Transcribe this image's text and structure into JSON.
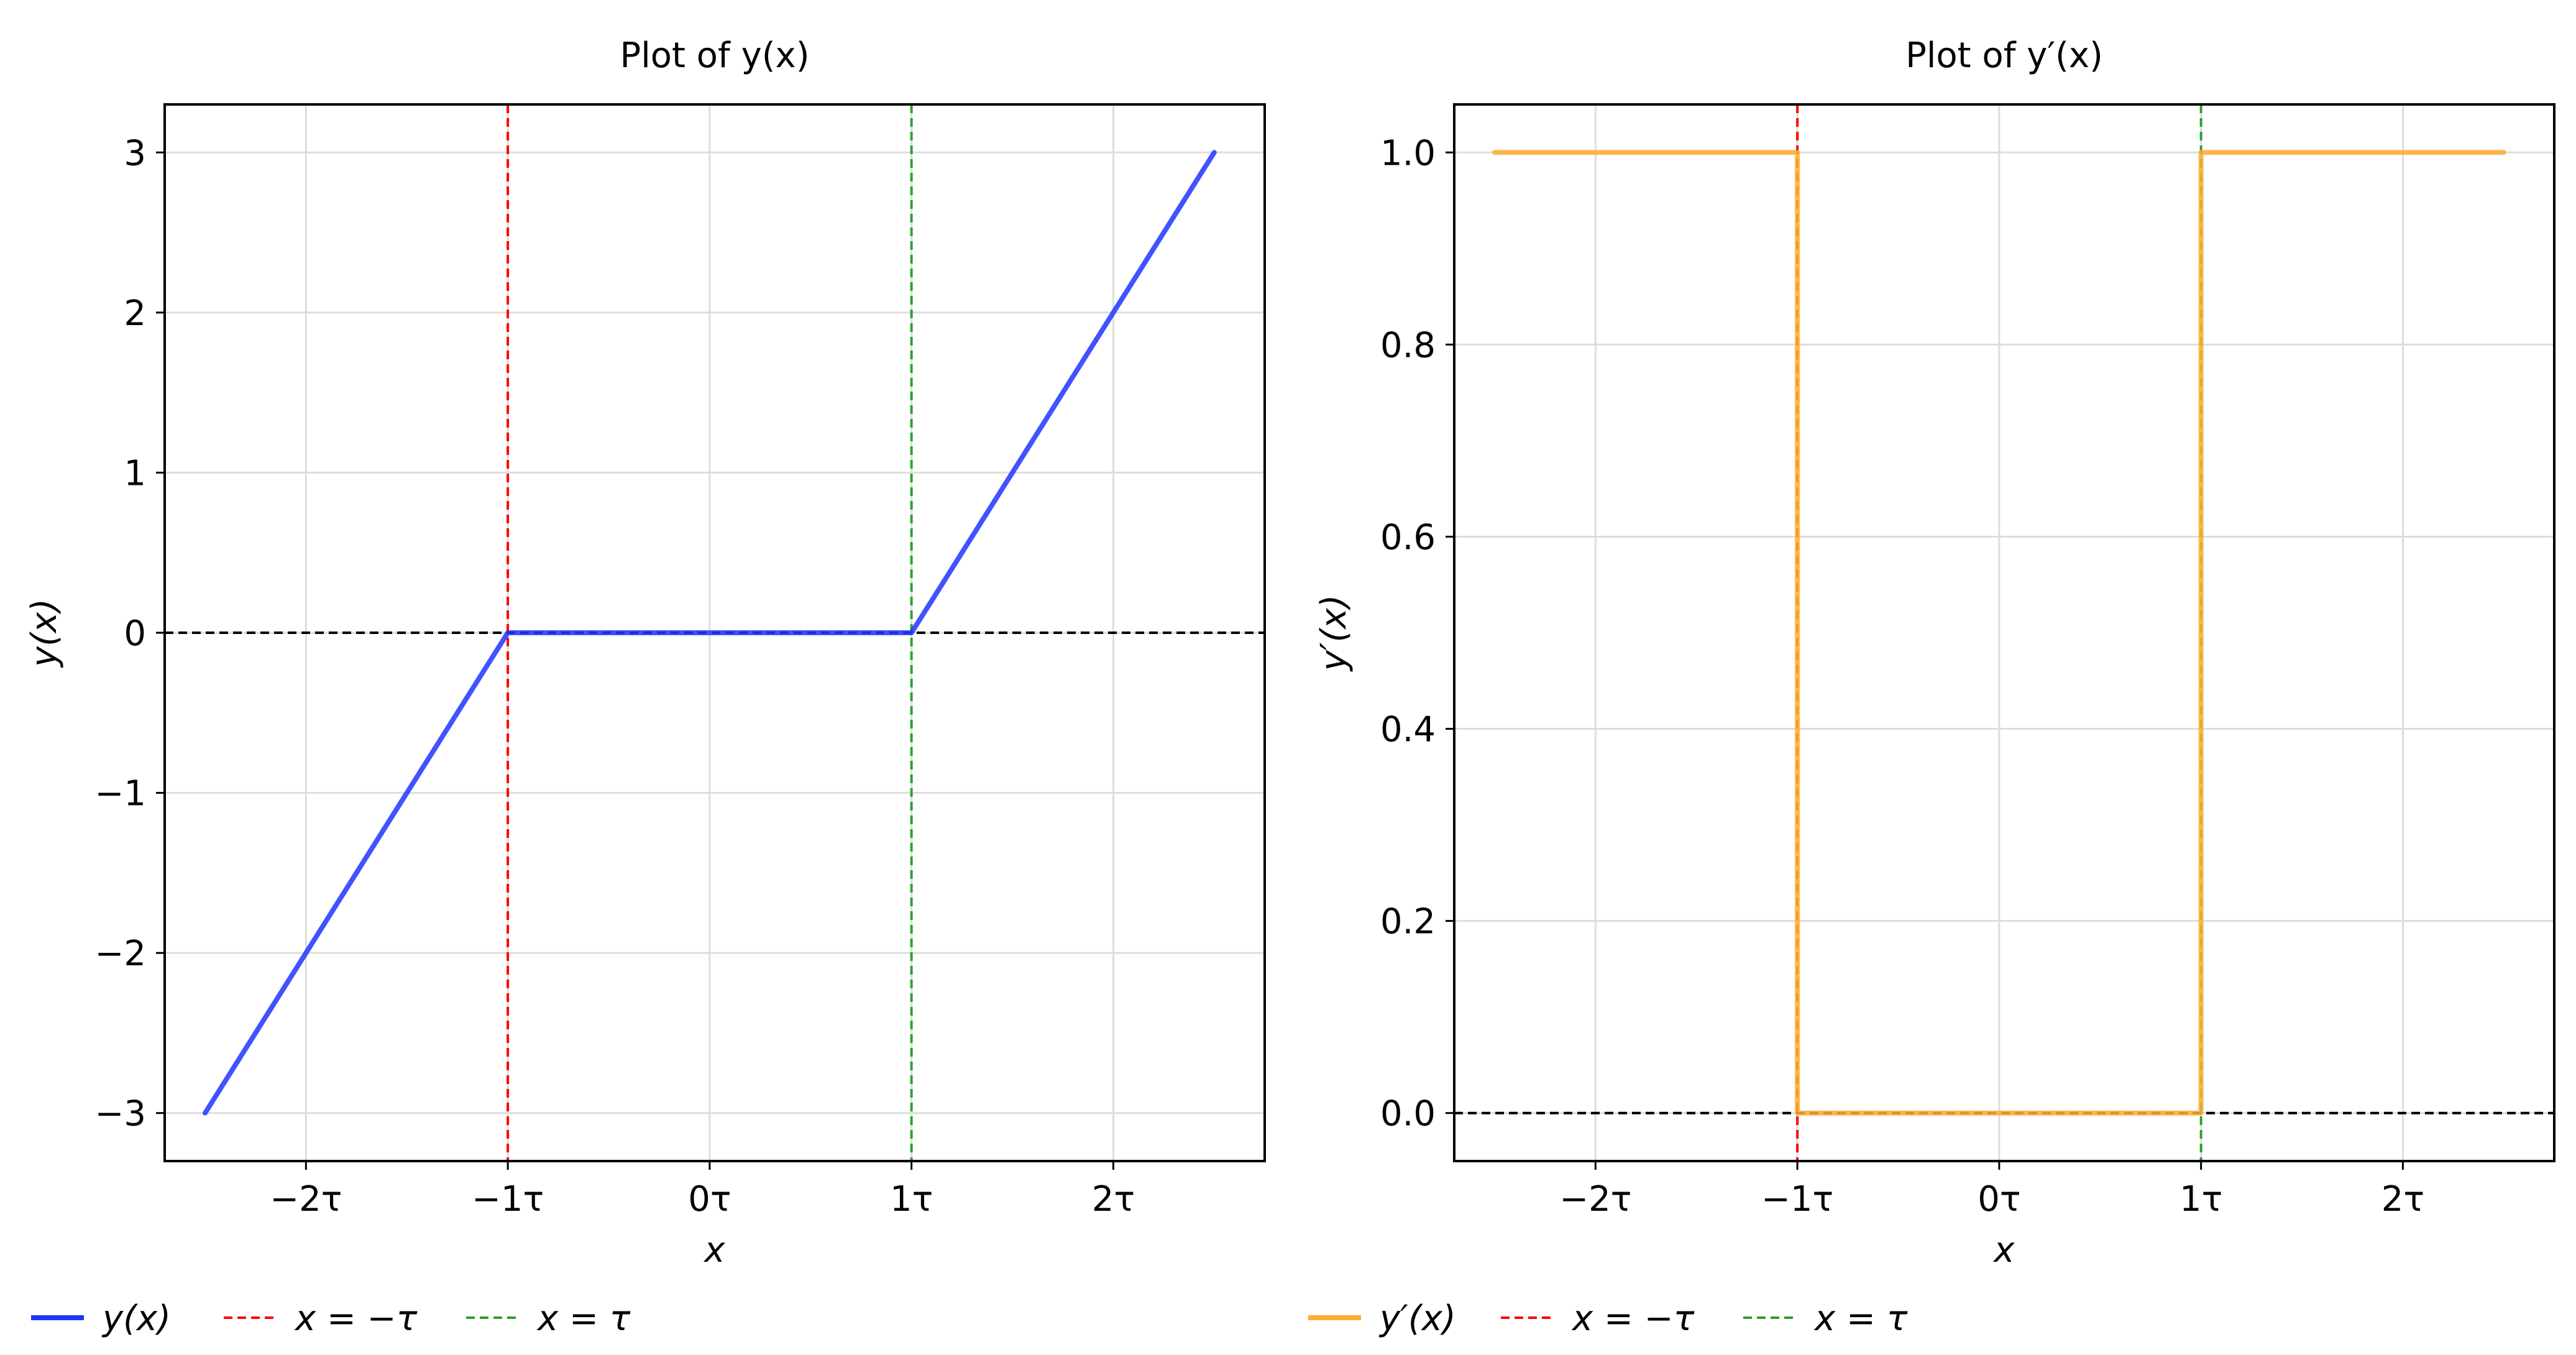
{
  "colors": {
    "y_series": "#1f35ff",
    "dy_series": "#ffad33",
    "neg_tau_line": "#ff0000",
    "pos_tau_line": "#2ca02c",
    "zero_line": "#000000",
    "grid": "#dddddd"
  },
  "chart_data": [
    {
      "type": "line",
      "title": "Plot of y(x)",
      "xlabel": "x",
      "ylabel": "y(x)",
      "xlim": [
        -2.7,
        2.75
      ],
      "ylim": [
        -3.3,
        3.3
      ],
      "xticks": [
        -2,
        -1,
        0,
        1,
        2
      ],
      "xtick_labels": [
        "−2τ",
        "−1τ",
        "0τ",
        "1τ",
        "2τ"
      ],
      "yticks": [
        -3,
        -2,
        -1,
        0,
        1,
        2,
        3
      ],
      "ytick_labels": [
        "−3",
        "−2",
        "−1",
        "0",
        "1",
        "2",
        "3"
      ],
      "grid": true,
      "series": [
        {
          "name": "y(x)",
          "x": [
            -2.5,
            -1,
            1,
            2.5
          ],
          "y": [
            -3,
            0,
            0,
            3
          ]
        }
      ],
      "vlines": [
        {
          "name": "x = −τ",
          "x": -1
        },
        {
          "name": "x = τ",
          "x": 1
        }
      ],
      "hline": 0,
      "legend": {
        "placement": "bottom",
        "entries": [
          "y(x)",
          "x = −τ",
          "x = τ"
        ]
      }
    },
    {
      "type": "line",
      "title": "Plot of y′(x)",
      "xlabel": "x",
      "ylabel": "y′(x)",
      "xlim": [
        -2.7,
        2.75
      ],
      "ylim": [
        -0.05,
        1.05
      ],
      "xticks": [
        -2,
        -1,
        0,
        1,
        2
      ],
      "xtick_labels": [
        "−2τ",
        "−1τ",
        "0τ",
        "1τ",
        "2τ"
      ],
      "yticks": [
        0,
        0.2,
        0.4,
        0.6,
        0.8,
        1.0
      ],
      "ytick_labels": [
        "0.0",
        "0.2",
        "0.4",
        "0.6",
        "0.8",
        "1.0"
      ],
      "grid": true,
      "series": [
        {
          "name": "y′(x)",
          "x": [
            -2.5,
            -1,
            -1,
            1,
            1,
            2.5
          ],
          "y": [
            1,
            1,
            0,
            0,
            1,
            1
          ]
        }
      ],
      "vlines": [
        {
          "name": "x = −τ",
          "x": -1
        },
        {
          "name": "x = τ",
          "x": 1
        }
      ],
      "hline": 0,
      "legend": {
        "placement": "bottom",
        "entries": [
          "y′(x)",
          "x = −τ",
          "x = τ"
        ]
      }
    }
  ]
}
